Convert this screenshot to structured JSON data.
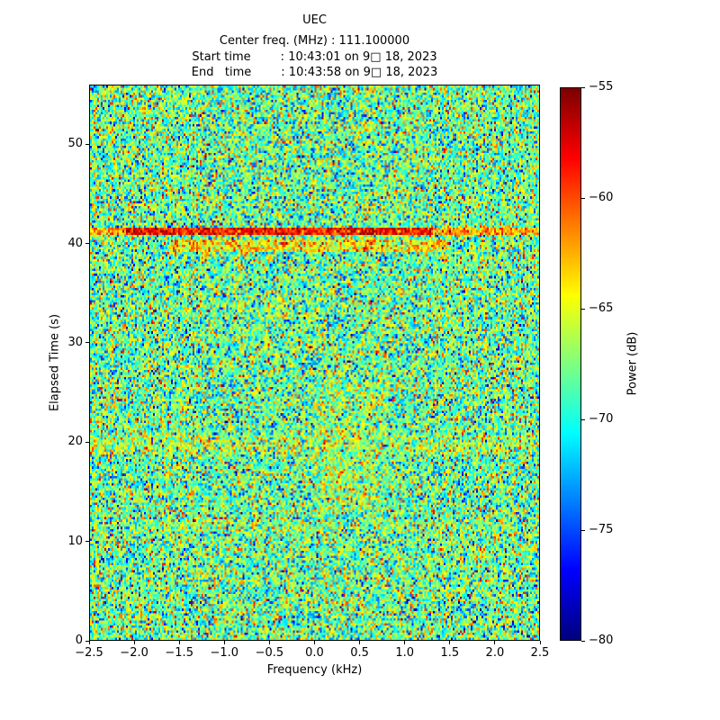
{
  "header": {
    "title": "UEC",
    "center_freq_line": "Center freq. (MHz) : 111.100000",
    "start_time_line": "Start time        : 10:43:01 on 9□ 18, 2023",
    "end_time_line": "End   time        : 10:43:58 on 9□ 18, 2023"
  },
  "chart_data": {
    "type": "heatmap",
    "title": "UEC",
    "subtitle_lines": [
      "Center freq. (MHz) : 111.100000",
      "Start time : 10:43:01 on 9□ 18, 2023",
      "End time : 10:43:58 on 9□ 18, 2023"
    ],
    "xlabel": "Frequency (kHz)",
    "ylabel": "Elapsed Time (s)",
    "xlim": [
      -2.5,
      2.5
    ],
    "ylim": [
      0,
      56
    ],
    "xtick_values": [
      -2.5,
      -2.0,
      -1.5,
      -1.0,
      -0.5,
      0.0,
      0.5,
      1.0,
      1.5,
      2.0,
      2.5
    ],
    "xtick_labels": [
      "−2.5",
      "−2.0",
      "−1.5",
      "−1.0",
      "−0.5",
      "0.0",
      "0.5",
      "1.0",
      "1.5",
      "2.0",
      "2.5"
    ],
    "ytick_values": [
      0,
      10,
      20,
      30,
      40,
      50
    ],
    "ytick_labels": [
      "0",
      "10",
      "20",
      "30",
      "40",
      "50"
    ],
    "grid": false,
    "colorbar": {
      "label": "Power (dB)",
      "min": -80,
      "max": -55,
      "tick_values": [
        -55,
        -60,
        -65,
        -70,
        -75,
        -80
      ],
      "tick_labels": [
        "−55",
        "−60",
        "−65",
        "−70",
        "−75",
        "−80"
      ],
      "colormap": "jet"
    },
    "noise": {
      "seed": 42,
      "mean_db": -68.0,
      "sigma_db": 4.0,
      "cols": 250,
      "rows": 230,
      "description": "broadband background noise floor around −68 dB rendered with jet colormap"
    },
    "features": [
      {
        "type": "horizontal-band",
        "time_range": [
          40.9,
          41.7
        ],
        "freq_range": [
          -2.5,
          2.5
        ],
        "mean_db": -62.5,
        "sigma_db": 2.5,
        "description": "full-width orange interference line near t = 41 s"
      },
      {
        "type": "horizontal-band",
        "time_range": [
          40.9,
          41.7
        ],
        "freq_range": [
          -2.1,
          1.3
        ],
        "mean_db": -58.5,
        "sigma_db": 2.0,
        "description": "strong red core of interference line near t = 41 s"
      },
      {
        "type": "horizontal-band",
        "time_range": [
          39.2,
          40.4
        ],
        "freq_range": [
          -1.6,
          1.5
        ],
        "mean_db": -64.0,
        "sigma_db": 3.0,
        "description": "weaker scattered orange line near t = 40 s"
      },
      {
        "type": "horizontal-band",
        "time_range": [
          18.8,
          20.8
        ],
        "freq_range": [
          -2.5,
          2.5
        ],
        "mean_db": -66.5,
        "sigma_db": 3.5,
        "description": "faint warm band near t = 20 s"
      },
      {
        "type": "horizontal-band",
        "time_range": [
          10.9,
          12.2
        ],
        "freq_range": [
          -2.0,
          2.2
        ],
        "mean_db": -67.0,
        "sigma_db": 3.5,
        "description": "very faint warm band near t = 11.5 s"
      },
      {
        "type": "vertical-band",
        "time_range": [
          13.0,
          26.0
        ],
        "freq_range": [
          0.0,
          0.8
        ],
        "mean_db": -66.8,
        "sigma_db": 3.5,
        "description": "slight warm smear right of center frequency"
      }
    ]
  }
}
